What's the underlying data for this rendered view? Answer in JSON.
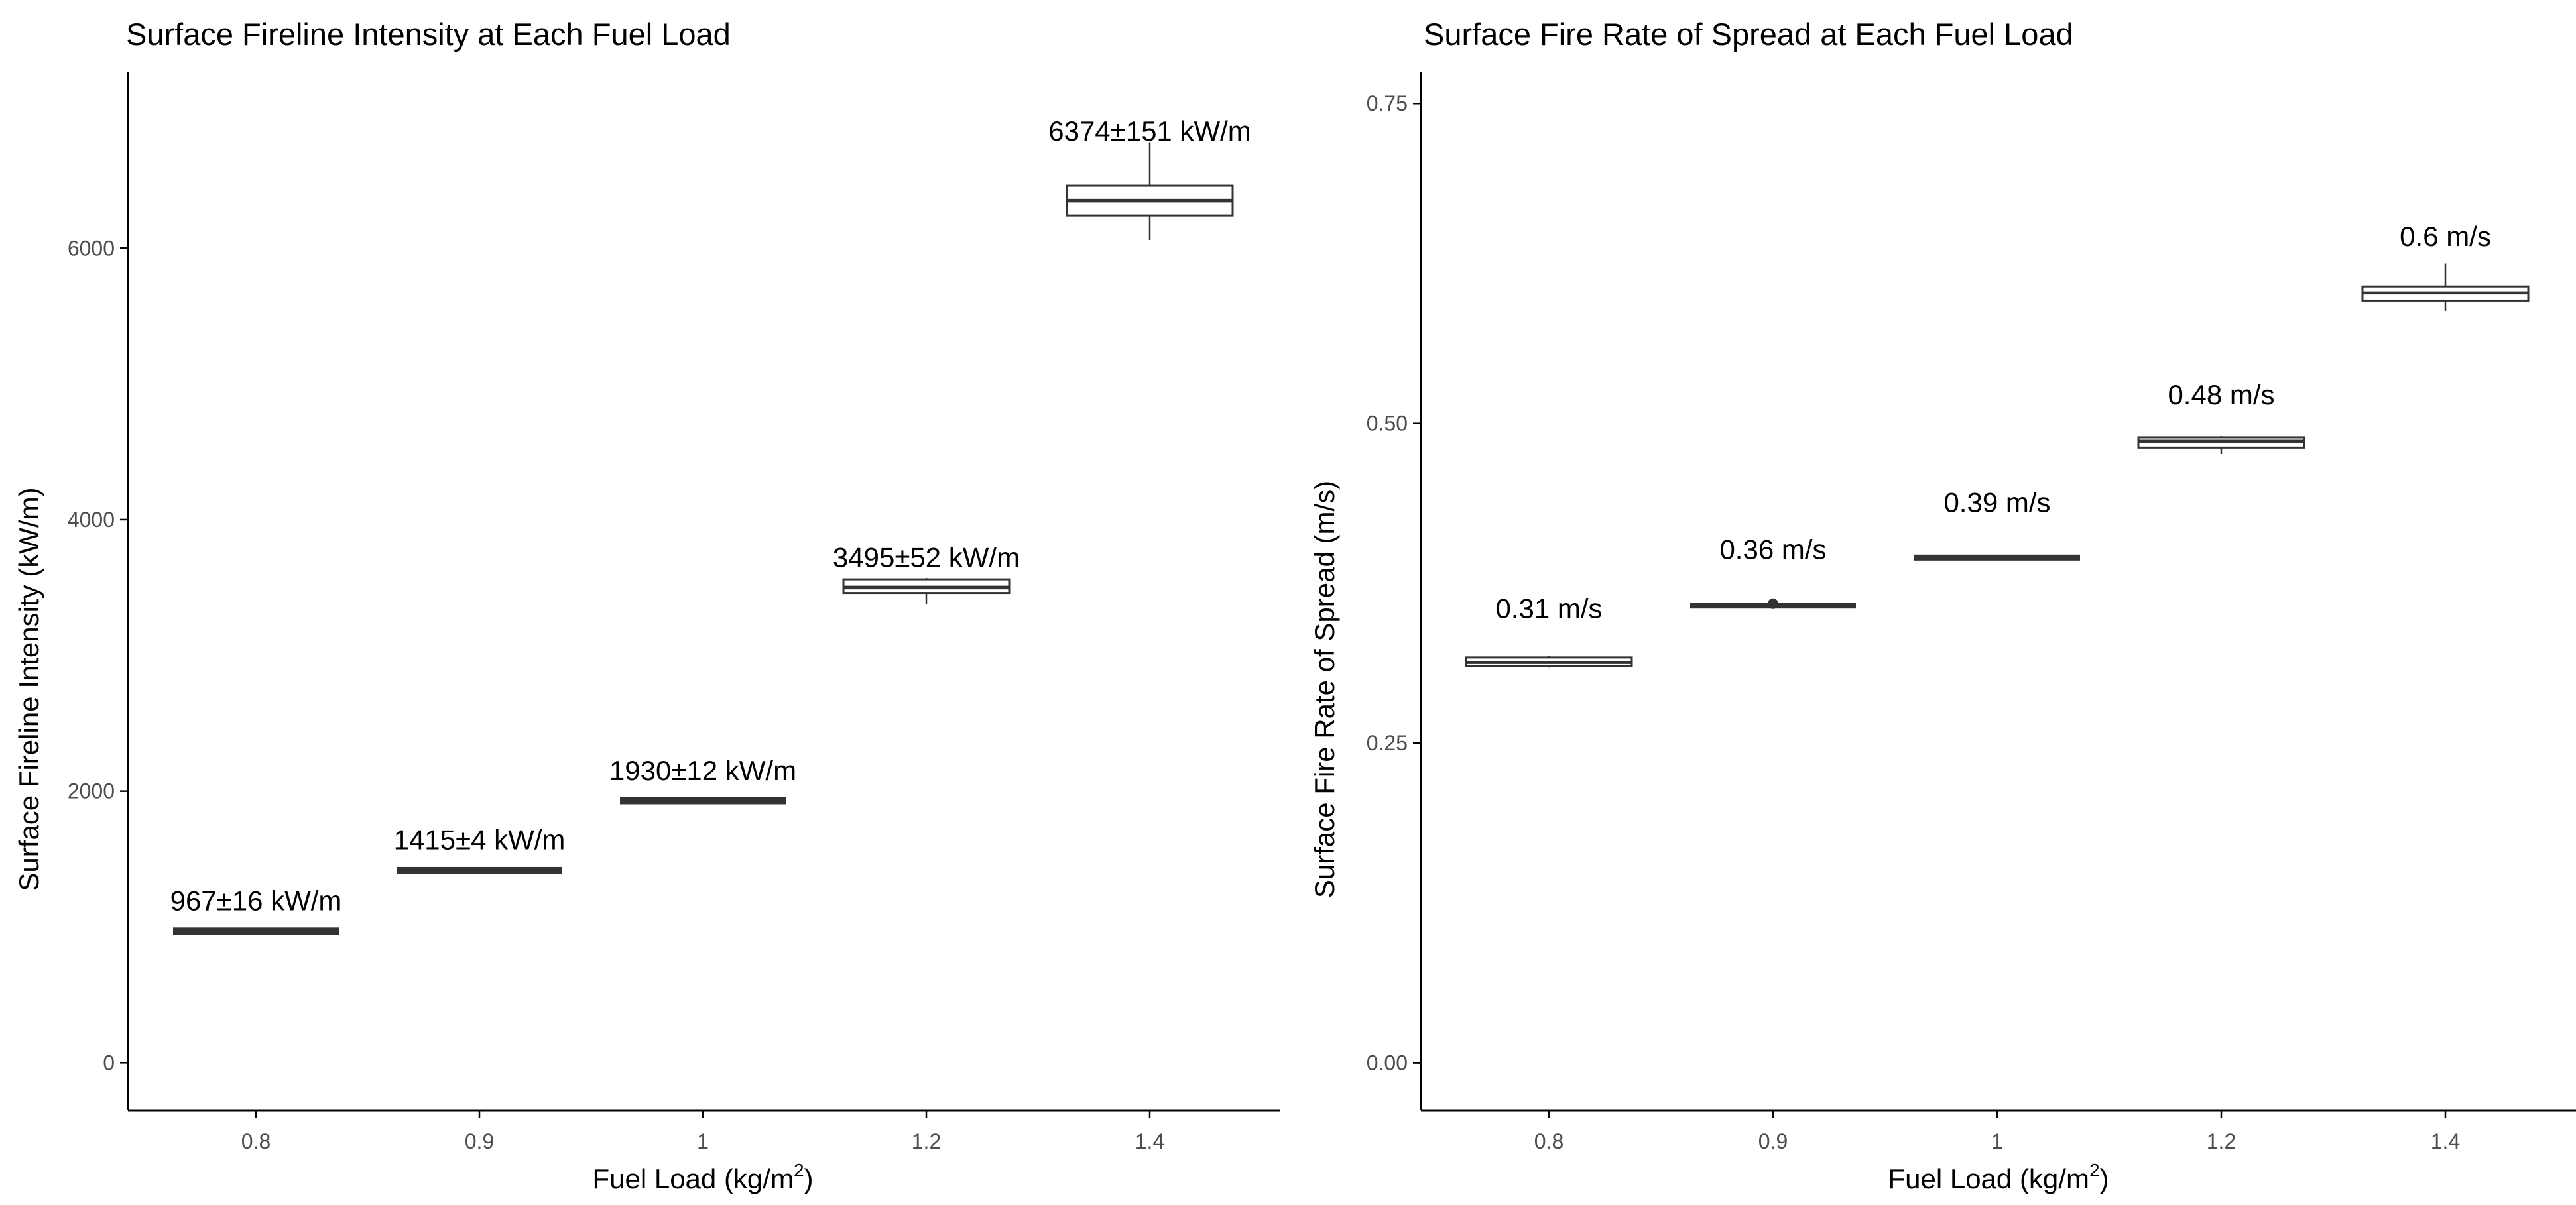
{
  "chart_data": [
    {
      "type": "box",
      "title": "Surface Fireline Intensity at Each Fuel Load",
      "xlabel": "Fuel Load (kg/m",
      "xlabel_sup": "2",
      "xlabel_end": ")",
      "ylabel": "Surface Fireline Intensity (kW/m)",
      "ylim": [
        -350,
        7300
      ],
      "yticks": [
        0,
        2000,
        4000,
        6000
      ],
      "ytick_labels": [
        "0",
        "2000",
        "4000",
        "6000"
      ],
      "categories": [
        "0.8",
        "0.9",
        "1",
        "1.2",
        "1.4"
      ],
      "boxes": [
        {
          "min": 945,
          "q1": 956,
          "median": 967,
          "q3": 982,
          "max": 992
        },
        {
          "min": 1410,
          "q1": 1412,
          "median": 1415,
          "q3": 1418,
          "max": 1422
        },
        {
          "min": 1918,
          "q1": 1925,
          "median": 1930,
          "q3": 1935,
          "max": 1948
        },
        {
          "min": 3380,
          "q1": 3460,
          "median": 3500,
          "q3": 3560,
          "max": 3570
        },
        {
          "min": 6060,
          "q1": 6240,
          "median": 6350,
          "q3": 6460,
          "max": 6780
        }
      ],
      "labels": [
        "967±16 kW/m",
        "1415±4 kW/m",
        "1930±12 kW/m",
        "3495±52 kW/m",
        "6374±151 kW/m"
      ],
      "label_values": [
        1190,
        1640,
        2150,
        3720,
        6860
      ]
    },
    {
      "type": "box",
      "title": "Surface Fire Rate of Spread at Each Fuel Load",
      "xlabel": "Fuel Load (kg/m",
      "xlabel_sup": "2",
      "xlabel_end": ")",
      "ylabel": "Surface Fire Rate of Spread (m/s)",
      "ylim": [
        -0.037,
        0.775
      ],
      "yticks": [
        0,
        0.25,
        0.5,
        0.75
      ],
      "ytick_labels": [
        "0.00",
        "0.25",
        "0.50",
        "0.75"
      ],
      "categories": [
        "0.8",
        "0.9",
        "1",
        "1.2",
        "1.4"
      ],
      "boxes": [
        {
          "min": 0.309,
          "q1": 0.31,
          "median": 0.313,
          "q3": 0.317,
          "max": 0.318
        },
        {
          "min": 0.357,
          "q1": 0.357,
          "median": 0.358,
          "q3": 0.358,
          "max": 0.359,
          "outliers": [
            0.359
          ]
        },
        {
          "min": 0.393,
          "q1": 0.394,
          "median": 0.395,
          "q3": 0.396,
          "max": 0.397
        },
        {
          "min": 0.476,
          "q1": 0.481,
          "median": 0.486,
          "q3": 0.489,
          "max": 0.49
        },
        {
          "min": 0.588,
          "q1": 0.596,
          "median": 0.602,
          "q3": 0.607,
          "max": 0.625
        }
      ],
      "labels": [
        "0.31 m/s",
        "0.36 m/s",
        "0.39 m/s",
        "0.48 m/s",
        "0.6 m/s"
      ],
      "label_values": [
        0.355,
        0.401,
        0.438,
        0.522,
        0.646
      ]
    }
  ]
}
